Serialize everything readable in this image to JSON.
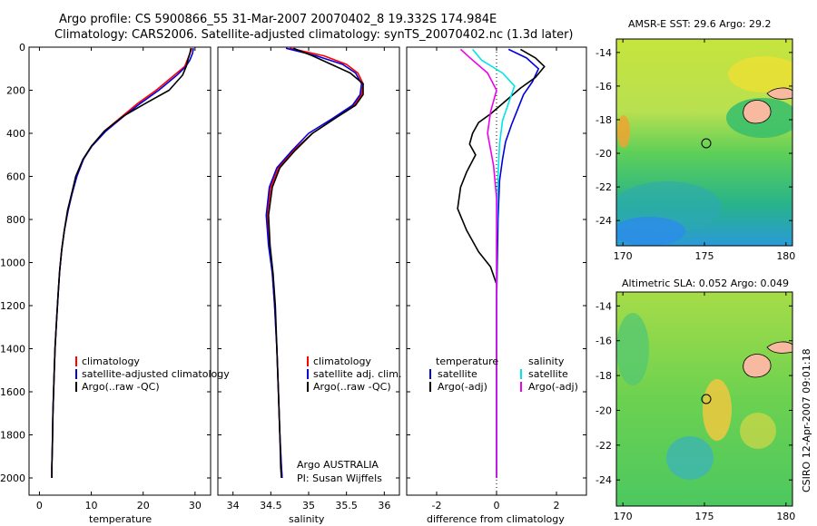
{
  "header": {
    "line1": "Argo profile: CS 5900866_55 31-Mar-2007 20070402_8 19.332S 174.984E",
    "line2": "Climatology: CARS2006. Satellite-adjusted climatology: synTS_20070402.nc (1.3d later)"
  },
  "colors": {
    "climatology": "#ff0000",
    "satellite": "#0000dd",
    "argo": "#000000",
    "sat_salinity": "#00e5e5",
    "argo_adj_salinity": "#ee00ee"
  },
  "chart_data": [
    {
      "id": "temperature",
      "type": "line",
      "xlabel": "temperature",
      "ylabel": "depth",
      "xlim": [
        -2,
        33
      ],
      "ylim": [
        0,
        2080
      ],
      "y_reversed": true,
      "xticks": [
        0,
        10,
        20,
        30
      ],
      "yticks": [
        0,
        200,
        400,
        600,
        800,
        1000,
        1200,
        1400,
        1600,
        1800,
        2000
      ],
      "legend": [
        "climatology",
        "satellite-adjusted climatology",
        "Argo(..raw -QC)"
      ],
      "series": [
        {
          "name": "climatology",
          "color": "#ff0000",
          "x": [
            29.4,
            29.0,
            28.5,
            28.0,
            26.0,
            22.5,
            19.0,
            16.0,
            12.5,
            10.0,
            8.5,
            7.2,
            6.3,
            5.5,
            4.8,
            4.3,
            3.9,
            3.6,
            3.3,
            3.0,
            2.8,
            2.6,
            2.5,
            2.4,
            2.4
          ],
          "y": [
            5,
            30,
            60,
            90,
            130,
            200,
            260,
            320,
            390,
            460,
            520,
            600,
            680,
            760,
            850,
            940,
            1040,
            1150,
            1270,
            1400,
            1550,
            1700,
            1850,
            1950,
            2000
          ]
        },
        {
          "name": "satellite-adjusted climatology",
          "color": "#0000dd",
          "x": [
            29.7,
            29.5,
            29.0,
            28.2,
            26.5,
            23.0,
            19.5,
            16.3,
            12.8,
            10.1,
            8.5,
            7.2,
            6.3,
            5.5,
            4.8,
            4.3,
            3.9,
            3.6,
            3.3,
            3.0,
            2.8,
            2.6,
            2.5,
            2.4,
            2.4
          ],
          "y": [
            5,
            30,
            60,
            90,
            130,
            200,
            260,
            320,
            390,
            460,
            520,
            600,
            680,
            760,
            850,
            940,
            1040,
            1150,
            1270,
            1400,
            1550,
            1700,
            1850,
            1950,
            2000
          ]
        },
        {
          "name": "Argo(..raw -QC)",
          "color": "#000000",
          "x": [
            29.2,
            29.0,
            28.6,
            28.3,
            27.6,
            25.0,
            20.5,
            16.2,
            12.5,
            10.0,
            8.4,
            7.0,
            6.2,
            5.4,
            4.8,
            4.3,
            3.9,
            3.6,
            3.3,
            3.0,
            2.8,
            2.6,
            2.5,
            2.4,
            2.4
          ],
          "y": [
            5,
            30,
            60,
            90,
            130,
            200,
            260,
            320,
            390,
            460,
            520,
            600,
            680,
            760,
            850,
            940,
            1040,
            1150,
            1270,
            1400,
            1550,
            1700,
            1850,
            1950,
            2000
          ]
        }
      ]
    },
    {
      "id": "salinity",
      "type": "line",
      "xlabel": "salinity",
      "ylabel": "depth",
      "xlim": [
        33.8,
        36.2
      ],
      "ylim": [
        0,
        2080
      ],
      "y_reversed": true,
      "xticks": [
        34,
        34.5,
        35,
        35.5,
        36
      ],
      "yticks": [
        0,
        200,
        400,
        600,
        800,
        1000,
        1200,
        1400,
        1600,
        1800,
        2000
      ],
      "legend": [
        "climatology",
        "satellite adj. clim.",
        "Argo(..raw -QC)"
      ],
      "annotation": [
        "Argo AUSTRALIA",
        "PI: Susan Wijffels"
      ],
      "series": [
        {
          "name": "climatology",
          "color": "#ff0000",
          "x": [
            34.75,
            35.2,
            35.5,
            35.65,
            35.72,
            35.7,
            35.6,
            35.35,
            35.05,
            34.8,
            34.6,
            34.5,
            34.45,
            34.48,
            34.52,
            34.55,
            34.58,
            34.6,
            34.62,
            34.64,
            34.65
          ],
          "y": [
            5,
            40,
            80,
            120,
            170,
            220,
            270,
            330,
            400,
            480,
            560,
            650,
            780,
            920,
            1050,
            1200,
            1400,
            1600,
            1800,
            1950,
            2000
          ]
        },
        {
          "name": "satellite adj. clim.",
          "color": "#0000dd",
          "x": [
            34.7,
            35.1,
            35.45,
            35.62,
            35.7,
            35.68,
            35.58,
            35.32,
            35.0,
            34.78,
            34.58,
            34.48,
            34.44,
            34.47,
            34.52,
            34.55,
            34.58,
            34.6,
            34.62,
            34.64,
            34.65
          ],
          "y": [
            5,
            40,
            80,
            120,
            170,
            220,
            270,
            330,
            400,
            480,
            560,
            650,
            780,
            920,
            1050,
            1200,
            1400,
            1600,
            1800,
            1950,
            2000
          ]
        },
        {
          "name": "Argo(..raw -QC)",
          "color": "#000000",
          "x": [
            34.8,
            35.05,
            35.3,
            35.55,
            35.72,
            35.72,
            35.62,
            35.35,
            35.05,
            34.82,
            34.62,
            34.52,
            34.47,
            34.49,
            34.53,
            34.56,
            34.58,
            34.6,
            34.62,
            34.63,
            34.64
          ],
          "y": [
            5,
            40,
            80,
            120,
            170,
            220,
            270,
            330,
            400,
            480,
            560,
            650,
            780,
            920,
            1050,
            1200,
            1400,
            1600,
            1800,
            1950,
            2000
          ]
        }
      ]
    },
    {
      "id": "difference",
      "type": "line",
      "xlabel": "difference from climatology",
      "ylabel": "depth",
      "xlim": [
        -3,
        3
      ],
      "ylim": [
        0,
        2080
      ],
      "y_reversed": true,
      "xticks": [
        -2,
        0,
        2
      ],
      "yticks": [
        0,
        200,
        400,
        600,
        800,
        1000,
        1200,
        1400,
        1600,
        1800,
        2000
      ],
      "legend_headers": [
        "temperature",
        "salinity"
      ],
      "legend": [
        "satellite",
        "Argo(-adj)",
        "satellite",
        "Argo(-adj)"
      ],
      "series": [
        {
          "name": "temperature satellite",
          "color": "#0000dd",
          "x": [
            0.4,
            1.0,
            1.4,
            1.2,
            0.9,
            0.7,
            0.5,
            0.3,
            0.2,
            0.1,
            0.05,
            0.0,
            0.0
          ],
          "y": [
            10,
            50,
            100,
            160,
            220,
            290,
            360,
            440,
            520,
            620,
            800,
            1200,
            2000
          ]
        },
        {
          "name": "temperature Argo(-adj)",
          "color": "#000000",
          "x": [
            0.8,
            1.3,
            1.6,
            1.3,
            0.8,
            0.3,
            -0.2,
            -0.6,
            -0.8,
            -0.9,
            -0.7,
            -1.0,
            -1.2,
            -1.3,
            -1.0,
            -0.6,
            -0.2,
            0.0,
            0.0
          ],
          "y": [
            10,
            50,
            90,
            140,
            190,
            250,
            310,
            350,
            400,
            450,
            500,
            580,
            650,
            750,
            850,
            950,
            1020,
            1100,
            2000
          ]
        },
        {
          "name": "salinity satellite",
          "color": "#00e5e5",
          "x": [
            -0.8,
            -0.5,
            0.2,
            0.6,
            0.4,
            0.2,
            0.1,
            0.05,
            0.0,
            0.0
          ],
          "y": [
            10,
            60,
            120,
            180,
            260,
            340,
            450,
            600,
            900,
            2000
          ]
        },
        {
          "name": "salinity Argo(-adj)",
          "color": "#ee00ee",
          "x": [
            -1.2,
            -0.8,
            -0.3,
            0.0,
            -0.2,
            -0.3,
            -0.1,
            0.0,
            0.0
          ],
          "y": [
            10,
            60,
            120,
            200,
            300,
            400,
            550,
            700,
            2000
          ]
        }
      ]
    },
    {
      "id": "sst_map",
      "type": "heatmap",
      "title": "AMSR-E SST: 29.6  Argo: 29.2",
      "xlim": [
        169.6,
        180.4
      ],
      "ylim": [
        -25.5,
        -13.2
      ],
      "xticks": [
        170,
        175,
        180
      ],
      "yticks": [
        -14,
        -16,
        -18,
        -20,
        -22,
        -24
      ],
      "marker": {
        "lon": 174.984,
        "lat": -19.332
      }
    },
    {
      "id": "sla_map",
      "type": "heatmap",
      "title": "Altimetric SLA: 0.052  Argo: 0.049",
      "xlim": [
        169.6,
        180.4
      ],
      "ylim": [
        -25.5,
        -13.2
      ],
      "xticks": [
        170,
        175,
        180
      ],
      "yticks": [
        -14,
        -16,
        -18,
        -20,
        -22,
        -24
      ],
      "marker": {
        "lon": 174.984,
        "lat": -19.332
      }
    }
  ],
  "footer": {
    "stamp": "CSIRO 12-Apr-2007 09:01:18"
  }
}
